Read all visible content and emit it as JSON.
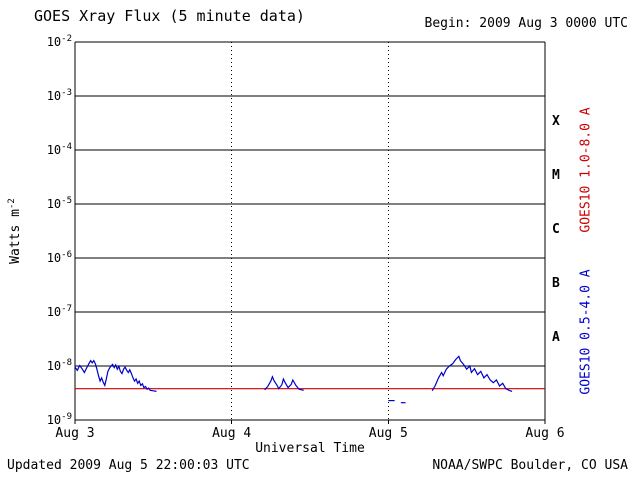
{
  "header": {
    "title": "GOES Xray Flux (5 minute data)",
    "begin_label": "Begin:  2009 Aug 3 0000 UTC"
  },
  "footer": {
    "updated": "Updated 2009 Aug  5 22:00:03 UTC",
    "source": "NOAA/SWPC Boulder, CO USA"
  },
  "chart_data": {
    "type": "line",
    "title": "GOES Xray Flux (5 minute data)",
    "xlabel": "Universal Time",
    "ylabel": "Watts m",
    "ylabel_exponent": "-2",
    "x_ticks": [
      "Aug 3",
      "Aug 4",
      "Aug 5",
      "Aug 6"
    ],
    "x_range_days": [
      0,
      3
    ],
    "y_tick_exponents": [
      -2,
      -3,
      -4,
      -5,
      -6,
      -7,
      -8,
      -9
    ],
    "ylog_range": [
      -9,
      -2
    ],
    "grid": {
      "horizontal": "solid-every-decade",
      "vertical": "dotted-at-day-boundaries"
    },
    "flare_classes": [
      {
        "label": "X",
        "log_center": -3.5
      },
      {
        "label": "M",
        "log_center": -4.5
      },
      {
        "label": "C",
        "log_center": -5.5
      },
      {
        "label": "B",
        "log_center": -6.5
      },
      {
        "label": "A",
        "log_center": -7.5
      }
    ],
    "axis_color": "#000000",
    "legend_position": "right-rotated",
    "series": [
      {
        "name": "GOES10 1.0-8.0 A",
        "color": "#cc0000",
        "label_center": {
          "x": 586,
          "y": 170
        },
        "segments": [
          [
            [
              0.0,
              -8.42
            ],
            [
              3.0,
              -8.42
            ]
          ]
        ]
      },
      {
        "name": "GOES10 0.5-4.0 A",
        "color": "#0000cc",
        "label_center": {
          "x": 586,
          "y": 332
        },
        "segments": [
          [
            [
              0.0,
              -8.02
            ],
            [
              0.015,
              -8.08
            ],
            [
              0.03,
              -7.99
            ],
            [
              0.045,
              -8.05
            ],
            [
              0.06,
              -8.12
            ],
            [
              0.075,
              -8.03
            ],
            [
              0.09,
              -7.95
            ],
            [
              0.1,
              -7.9
            ],
            [
              0.11,
              -7.94
            ],
            [
              0.12,
              -7.9
            ],
            [
              0.13,
              -7.96
            ],
            [
              0.14,
              -8.06
            ],
            [
              0.15,
              -8.18
            ],
            [
              0.16,
              -8.28
            ],
            [
              0.17,
              -8.22
            ],
            [
              0.18,
              -8.3
            ],
            [
              0.19,
              -8.36
            ],
            [
              0.2,
              -8.24
            ],
            [
              0.21,
              -8.1
            ],
            [
              0.22,
              -8.04
            ],
            [
              0.23,
              -8.0
            ],
            [
              0.24,
              -7.97
            ],
            [
              0.25,
              -8.03
            ],
            [
              0.26,
              -7.98
            ],
            [
              0.27,
              -8.06
            ],
            [
              0.28,
              -8.01
            ],
            [
              0.29,
              -8.1
            ],
            [
              0.3,
              -8.14
            ],
            [
              0.31,
              -8.06
            ],
            [
              0.32,
              -8.02
            ],
            [
              0.33,
              -8.08
            ],
            [
              0.34,
              -8.12
            ],
            [
              0.35,
              -8.07
            ],
            [
              0.36,
              -8.14
            ],
            [
              0.37,
              -8.22
            ],
            [
              0.38,
              -8.28
            ],
            [
              0.39,
              -8.24
            ],
            [
              0.4,
              -8.32
            ],
            [
              0.41,
              -8.28
            ],
            [
              0.42,
              -8.36
            ],
            [
              0.43,
              -8.33
            ],
            [
              0.44,
              -8.4
            ],
            [
              0.45,
              -8.38
            ],
            [
              0.46,
              -8.43
            ],
            [
              0.47,
              -8.41
            ],
            [
              0.48,
              -8.45
            ],
            [
              0.5,
              -8.46
            ],
            [
              0.52,
              -8.47
            ]
          ],
          [
            [
              1.21,
              -8.44
            ],
            [
              1.23,
              -8.38
            ],
            [
              1.25,
              -8.28
            ],
            [
              1.26,
              -8.2
            ],
            [
              1.27,
              -8.27
            ],
            [
              1.29,
              -8.36
            ],
            [
              1.3,
              -8.42
            ],
            [
              1.32,
              -8.35
            ],
            [
              1.33,
              -8.24
            ],
            [
              1.34,
              -8.3
            ],
            [
              1.36,
              -8.4
            ],
            [
              1.38,
              -8.34
            ],
            [
              1.39,
              -8.26
            ],
            [
              1.41,
              -8.36
            ],
            [
              1.43,
              -8.43
            ],
            [
              1.46,
              -8.45
            ]
          ],
          [
            [
              2.0,
              -8.64
            ],
            [
              2.04,
              -8.64
            ]
          ],
          [
            [
              2.08,
              -8.68
            ],
            [
              2.11,
              -8.68
            ]
          ],
          [
            [
              2.28,
              -8.46
            ],
            [
              2.3,
              -8.36
            ],
            [
              2.32,
              -8.22
            ],
            [
              2.34,
              -8.12
            ],
            [
              2.35,
              -8.18
            ],
            [
              2.37,
              -8.06
            ],
            [
              2.39,
              -8.0
            ],
            [
              2.41,
              -7.96
            ],
            [
              2.43,
              -7.88
            ],
            [
              2.45,
              -7.82
            ],
            [
              2.46,
              -7.9
            ],
            [
              2.48,
              -7.97
            ],
            [
              2.5,
              -8.06
            ],
            [
              2.52,
              -8.0
            ],
            [
              2.53,
              -8.12
            ],
            [
              2.55,
              -8.05
            ],
            [
              2.57,
              -8.16
            ],
            [
              2.59,
              -8.1
            ],
            [
              2.61,
              -8.22
            ],
            [
              2.63,
              -8.16
            ],
            [
              2.65,
              -8.26
            ],
            [
              2.67,
              -8.31
            ],
            [
              2.69,
              -8.26
            ],
            [
              2.71,
              -8.37
            ],
            [
              2.73,
              -8.32
            ],
            [
              2.75,
              -8.42
            ],
            [
              2.77,
              -8.45
            ],
            [
              2.79,
              -8.47
            ]
          ]
        ]
      }
    ]
  }
}
